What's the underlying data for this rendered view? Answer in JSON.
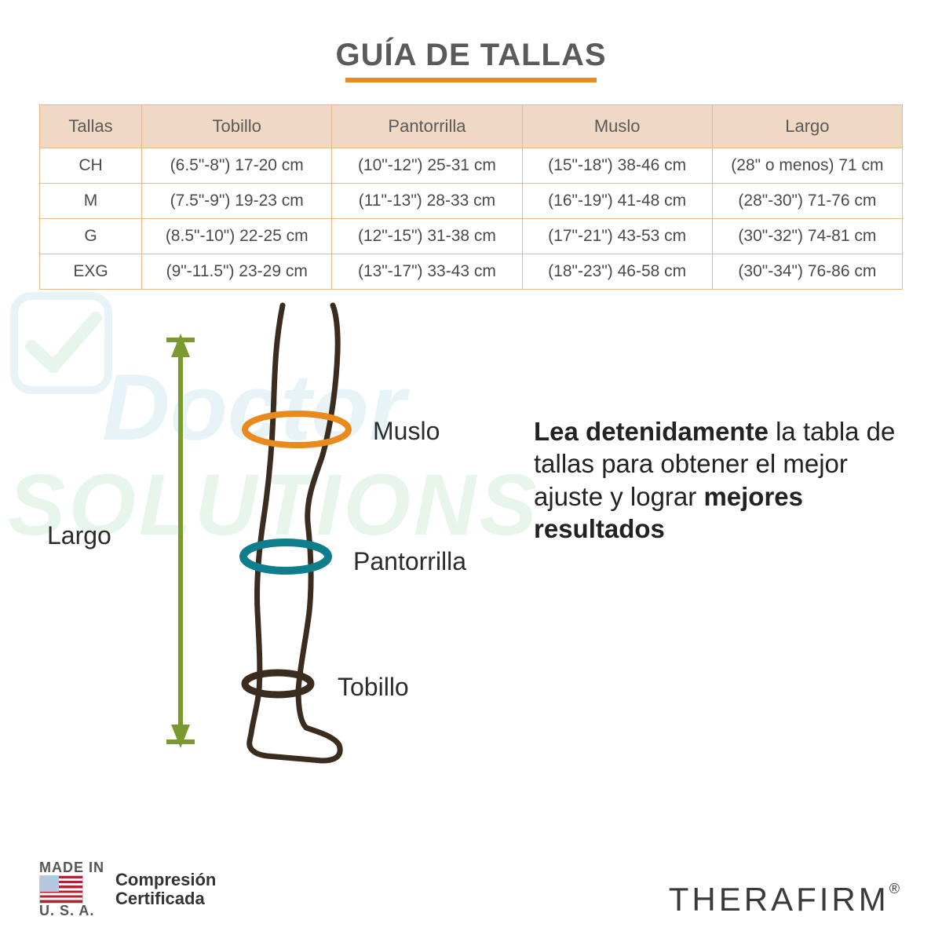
{
  "title": "GUÍA DE TALLAS",
  "colors": {
    "title_underline": "#e88a1e",
    "table_border": "#e6b88a",
    "table_header_bg": "#efd8c4",
    "text": "#4a4a4a",
    "arrow_green": "#7a9a2e",
    "ring_thigh": "#e88a1e",
    "ring_calf": "#0e7d8c",
    "ring_ankle": "#3a2d1f",
    "leg_stroke": "#3a2d1f",
    "watermark_blue": "#1e90b0",
    "watermark_green": "#2aa74a",
    "brand": "#3a3a3a"
  },
  "table": {
    "columns": [
      "Tallas",
      "Tobillo",
      "Pantorrilla",
      "Muslo",
      "Largo"
    ],
    "rows": [
      [
        "CH",
        "(6.5\"-8\")  17-20 cm",
        "(10\"-12\")  25-31 cm",
        "(15\"-18\")  38-46 cm",
        "(28\" o menos)  71 cm"
      ],
      [
        "M",
        "(7.5\"-9\")  19-23 cm",
        "(11\"-13\")  28-33 cm",
        "(16\"-19\")  41-48 cm",
        "(28\"-30\")  71-76 cm"
      ],
      [
        "G",
        "(8.5\"-10\")  22-25 cm",
        "(12\"-15\")  31-38 cm",
        "(17\"-21\")  43-53 cm",
        "(30\"-32\")  74-81 cm"
      ],
      [
        "EXG",
        "(9\"-11.5\")  23-29 cm",
        "(13\"-17\")  33-43 cm",
        "(18\"-23\")  46-58 cm",
        "(30\"-34\")  76-86 cm"
      ]
    ]
  },
  "diagram": {
    "labels": {
      "largo": "Largo",
      "muslo": "Muslo",
      "pantorrilla": "Pantorrilla",
      "tobillo": "Tobillo"
    }
  },
  "advice": {
    "line1_bold": "Lea detenidamente",
    "line2": "la tabla de tallas para obtener el mejor ajuste y lograr",
    "line3_bold": "mejores resultados"
  },
  "watermark": {
    "line1": "Doctor",
    "line2": "SOLUTIONS"
  },
  "footer": {
    "made_top": "MADE IN",
    "made_bottom": "U. S. A.",
    "cert_line1": "Compresión",
    "cert_line2": "Certificada",
    "brand": "THERAFIRM",
    "reg": "®"
  }
}
